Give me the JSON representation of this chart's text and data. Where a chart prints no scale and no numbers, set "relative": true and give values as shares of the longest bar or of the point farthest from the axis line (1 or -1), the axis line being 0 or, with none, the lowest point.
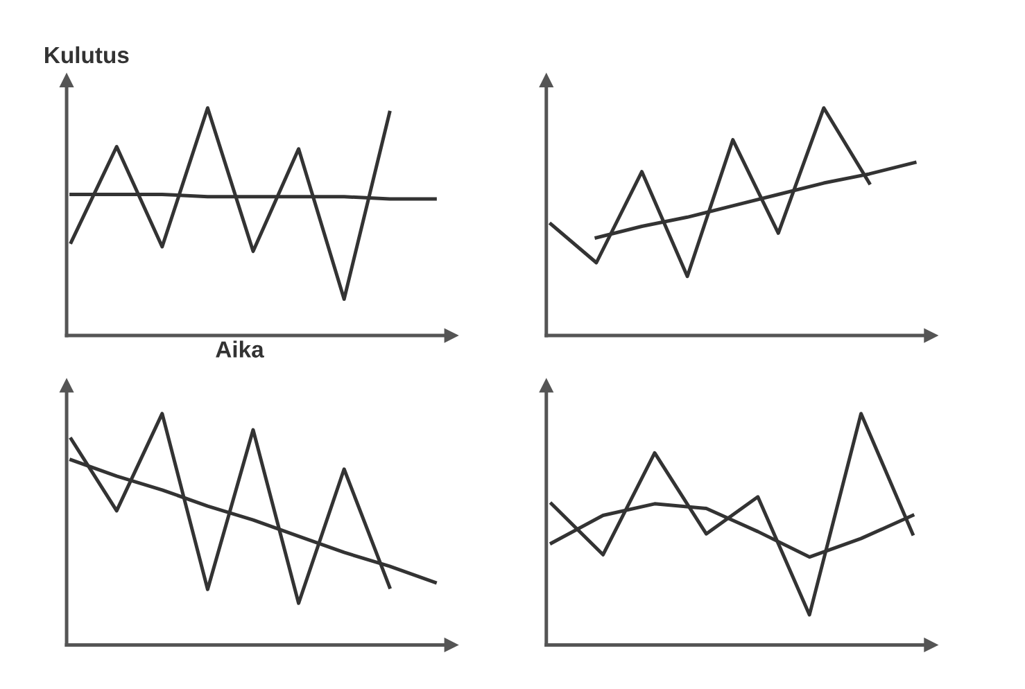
{
  "chart_data": [
    {
      "type": "line",
      "relative": true,
      "ylabel": "Kulutus",
      "xlabel": "Aika",
      "tick_labels": false,
      "categories": [
        null,
        null,
        null,
        null,
        null,
        null,
        null,
        null,
        null
      ],
      "series": [
        {
          "color": "#333333",
          "values": [
            0.41,
            0.83,
            0.39,
            1,
            0.37,
            0.82,
            0.16,
            0.98,
            null
          ]
        },
        {
          "color": "#333333",
          "values": [
            0.62,
            0.62,
            0.62,
            0.61,
            0.61,
            0.61,
            0.61,
            0.6,
            0.6
          ]
        }
      ]
    },
    {
      "type": "line",
      "relative": true,
      "tick_labels": false,
      "categories": [
        null,
        null,
        null,
        null,
        null,
        null,
        null,
        null,
        null
      ],
      "series": [
        {
          "color": "#333333",
          "values": [
            0.49,
            0.32,
            0.72,
            0.26,
            0.86,
            0.45,
            1,
            0.67,
            null
          ]
        },
        {
          "color": "#333333",
          "values": [
            null,
            0.43,
            0.48,
            0.52,
            0.57,
            0.62,
            0.67,
            0.71,
            0.76
          ]
        }
      ]
    },
    {
      "type": "line",
      "relative": true,
      "tick_labels": false,
      "categories": [
        null,
        null,
        null,
        null,
        null,
        null,
        null,
        null,
        null
      ],
      "series": [
        {
          "color": "#333333",
          "values": [
            0.89,
            0.58,
            1,
            0.24,
            0.93,
            0.18,
            0.76,
            0.25,
            null
          ]
        },
        {
          "color": "#333333",
          "values": [
            0.8,
            0.73,
            0.67,
            0.6,
            0.54,
            0.47,
            0.4,
            0.34,
            0.27
          ]
        }
      ]
    },
    {
      "type": "line",
      "relative": true,
      "tick_labels": false,
      "categories": [
        null,
        null,
        null,
        null,
        null,
        null,
        null,
        null
      ],
      "series": [
        {
          "color": "#333333",
          "values": [
            0.61,
            0.39,
            0.83,
            0.48,
            0.64,
            0.13,
            1,
            0.48
          ]
        },
        {
          "color": "#333333",
          "values": [
            0.44,
            0.56,
            0.61,
            0.59,
            0.49,
            0.38,
            0.46,
            0.56
          ]
        }
      ]
    }
  ]
}
